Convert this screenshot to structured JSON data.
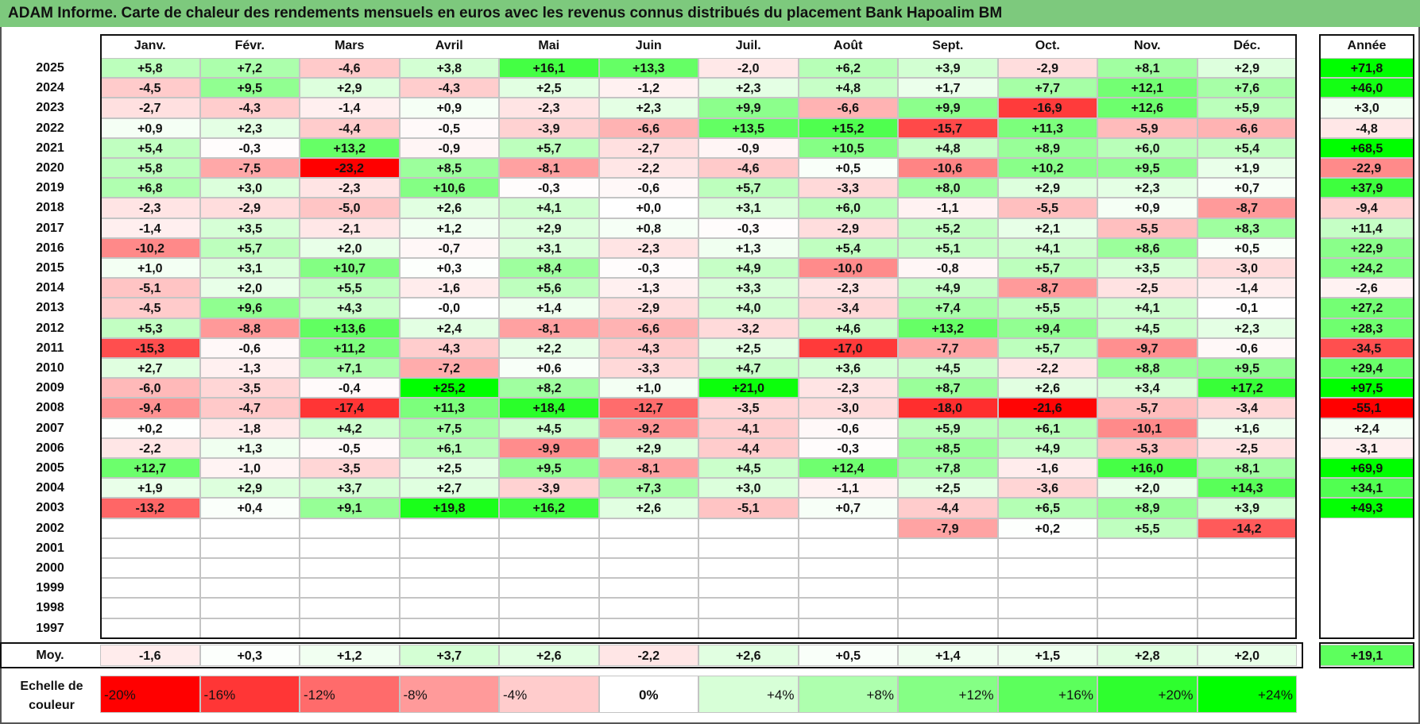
{
  "title": "ADAM Informe. Carte de chaleur des rendements mensuels en euros avec les revenus connus distribués du placement Bank Hapoalim BM",
  "chart_data": {
    "type": "heatmap",
    "title": "ADAM Informe. Carte de chaleur des rendements mensuels en euros avec les revenus connus distribués du placement Bank Hapoalim BM",
    "columns": [
      "Janv.",
      "Févr.",
      "Mars",
      "Avril",
      "Mai",
      "Juin",
      "Juil.",
      "Août",
      "Sept.",
      "Oct.",
      "Nov.",
      "Déc."
    ],
    "year_header": "Année",
    "average_label": "Moy.",
    "rows": [
      {
        "year": "2025",
        "values": [
          "+5,8",
          "+7,2",
          "-4,6",
          "+3,8",
          "+16,1",
          "+13,3",
          "-2,0",
          "+6,2",
          "+3,9",
          "-2,9",
          "+8,1",
          "+2,9"
        ],
        "total": "+71,8"
      },
      {
        "year": "2024",
        "values": [
          "-4,5",
          "+9,5",
          "+2,9",
          "-4,3",
          "+2,5",
          "-1,2",
          "+2,3",
          "+4,8",
          "+1,7",
          "+7,7",
          "+12,1",
          "+7,6"
        ],
        "total": "+46,0"
      },
      {
        "year": "2023",
        "values": [
          "-2,7",
          "-4,3",
          "-1,4",
          "+0,9",
          "-2,3",
          "+2,3",
          "+9,9",
          "-6,6",
          "+9,9",
          "-16,9",
          "+12,6",
          "+5,9"
        ],
        "total": "+3,0"
      },
      {
        "year": "2022",
        "values": [
          "+0,9",
          "+2,3",
          "-4,4",
          "-0,5",
          "-3,9",
          "-6,6",
          "+13,5",
          "+15,2",
          "-15,7",
          "+11,3",
          "-5,9",
          "-6,6"
        ],
        "total": "-4,8"
      },
      {
        "year": "2021",
        "values": [
          "+5,4",
          "-0,3",
          "+13,2",
          "-0,9",
          "+5,7",
          "-2,7",
          "-0,9",
          "+10,5",
          "+4,8",
          "+8,9",
          "+6,0",
          "+5,4"
        ],
        "total": "+68,5"
      },
      {
        "year": "2020",
        "values": [
          "+5,8",
          "-7,5",
          "-23,2",
          "+8,5",
          "-8,1",
          "-2,2",
          "-4,6",
          "+0,5",
          "-10,6",
          "+10,2",
          "+9,5",
          "+1,9"
        ],
        "total": "-22,9"
      },
      {
        "year": "2019",
        "values": [
          "+6,8",
          "+3,0",
          "-2,3",
          "+10,6",
          "-0,3",
          "-0,6",
          "+5,7",
          "-3,3",
          "+8,0",
          "+2,9",
          "+2,3",
          "+0,7"
        ],
        "total": "+37,9"
      },
      {
        "year": "2018",
        "values": [
          "-2,3",
          "-2,9",
          "-5,0",
          "+2,6",
          "+4,1",
          "+0,0",
          "+3,1",
          "+6,0",
          "-1,1",
          "-5,5",
          "+0,9",
          "-8,7"
        ],
        "total": "-9,4"
      },
      {
        "year": "2017",
        "values": [
          "-1,4",
          "+3,5",
          "-2,1",
          "+1,2",
          "+2,9",
          "+0,8",
          "-0,3",
          "-2,9",
          "+5,2",
          "+2,1",
          "-5,5",
          "+8,3"
        ],
        "total": "+11,4"
      },
      {
        "year": "2016",
        "values": [
          "-10,2",
          "+5,7",
          "+2,0",
          "-0,7",
          "+3,1",
          "-2,3",
          "+1,3",
          "+5,4",
          "+5,1",
          "+4,1",
          "+8,6",
          "+0,5"
        ],
        "total": "+22,9"
      },
      {
        "year": "2015",
        "values": [
          "+1,0",
          "+3,1",
          "+10,7",
          "+0,3",
          "+8,4",
          "-0,3",
          "+4,9",
          "-10,0",
          "-0,8",
          "+5,7",
          "+3,5",
          "-3,0"
        ],
        "total": "+24,2"
      },
      {
        "year": "2014",
        "values": [
          "-5,1",
          "+2,0",
          "+5,5",
          "-1,6",
          "+5,6",
          "-1,3",
          "+3,3",
          "-2,3",
          "+4,9",
          "-8,7",
          "-2,5",
          "-1,4"
        ],
        "total": "-2,6"
      },
      {
        "year": "2013",
        "values": [
          "-4,5",
          "+9,6",
          "+4,3",
          "-0,0",
          "+1,4",
          "-2,9",
          "+4,0",
          "-3,4",
          "+7,4",
          "+5,5",
          "+4,1",
          "-0,1"
        ],
        "total": "+27,2"
      },
      {
        "year": "2012",
        "values": [
          "+5,3",
          "-8,8",
          "+13,6",
          "+2,4",
          "-8,1",
          "-6,6",
          "-3,2",
          "+4,6",
          "+13,2",
          "+9,4",
          "+4,5",
          "+2,3"
        ],
        "total": "+28,3"
      },
      {
        "year": "2011",
        "values": [
          "-15,3",
          "-0,6",
          "+11,2",
          "-4,3",
          "+2,2",
          "-4,3",
          "+2,5",
          "-17,0",
          "-7,7",
          "+5,7",
          "-9,7",
          "-0,6"
        ],
        "total": "-34,5"
      },
      {
        "year": "2010",
        "values": [
          "+2,7",
          "-1,3",
          "+7,1",
          "-7,2",
          "+0,6",
          "-3,3",
          "+4,7",
          "+3,6",
          "+4,5",
          "-2,2",
          "+8,8",
          "+9,5"
        ],
        "total": "+29,4"
      },
      {
        "year": "2009",
        "values": [
          "-6,0",
          "-3,5",
          "-0,4",
          "+25,2",
          "+8,2",
          "+1,0",
          "+21,0",
          "-2,3",
          "+8,7",
          "+2,6",
          "+3,4",
          "+17,2"
        ],
        "total": "+97,5"
      },
      {
        "year": "2008",
        "values": [
          "-9,4",
          "-4,7",
          "-17,4",
          "+11,3",
          "+18,4",
          "-12,7",
          "-3,5",
          "-3,0",
          "-18,0",
          "-21,6",
          "-5,7",
          "-3,4"
        ],
        "total": "-55,1"
      },
      {
        "year": "2007",
        "values": [
          "+0,2",
          "-1,8",
          "+4,2",
          "+7,5",
          "+4,5",
          "-9,2",
          "-4,1",
          "-0,6",
          "+5,9",
          "+6,1",
          "-10,1",
          "+1,6"
        ],
        "total": "+2,4"
      },
      {
        "year": "2006",
        "values": [
          "-2,2",
          "+1,3",
          "-0,5",
          "+6,1",
          "-9,9",
          "+2,9",
          "-4,4",
          "-0,3",
          "+8,5",
          "+4,9",
          "-5,3",
          "-2,5"
        ],
        "total": "-3,1"
      },
      {
        "year": "2005",
        "values": [
          "+12,7",
          "-1,0",
          "-3,5",
          "+2,5",
          "+9,5",
          "-8,1",
          "+4,5",
          "+12,4",
          "+7,8",
          "-1,6",
          "+16,0",
          "+8,1"
        ],
        "total": "+69,9"
      },
      {
        "year": "2004",
        "values": [
          "+1,9",
          "+2,9",
          "+3,7",
          "+2,7",
          "-3,9",
          "+7,3",
          "+3,0",
          "-1,1",
          "+2,5",
          "-3,6",
          "+2,0",
          "+14,3"
        ],
        "total": "+34,1"
      },
      {
        "year": "2003",
        "values": [
          "-13,2",
          "+0,4",
          "+9,1",
          "+19,8",
          "+16,2",
          "+2,6",
          "-5,1",
          "+0,7",
          "-4,4",
          "+6,5",
          "+8,9",
          "+3,9"
        ],
        "total": "+49,3"
      },
      {
        "year": "2002",
        "values": [
          "",
          "",
          "",
          "",
          "",
          "",
          "",
          "",
          "-7,9",
          "+0,2",
          "+5,5",
          "-14,2"
        ],
        "total": ""
      },
      {
        "year": "2001",
        "values": [
          "",
          "",
          "",
          "",
          "",
          "",
          "",
          "",
          "",
          "",
          "",
          ""
        ],
        "total": ""
      },
      {
        "year": "2000",
        "values": [
          "",
          "",
          "",
          "",
          "",
          "",
          "",
          "",
          "",
          "",
          "",
          ""
        ],
        "total": ""
      },
      {
        "year": "1999",
        "values": [
          "",
          "",
          "",
          "",
          "",
          "",
          "",
          "",
          "",
          "",
          "",
          ""
        ],
        "total": ""
      },
      {
        "year": "1998",
        "values": [
          "",
          "",
          "",
          "",
          "",
          "",
          "",
          "",
          "",
          "",
          "",
          ""
        ],
        "total": ""
      },
      {
        "year": "1997",
        "values": [
          "",
          "",
          "",
          "",
          "",
          "",
          "",
          "",
          "",
          "",
          "",
          ""
        ],
        "total": ""
      }
    ],
    "average": {
      "values": [
        "-1,6",
        "+0,3",
        "+1,2",
        "+3,7",
        "+2,6",
        "-2,2",
        "+2,6",
        "+0,5",
        "+1,4",
        "+1,5",
        "+2,8",
        "+2,0"
      ],
      "total": "+19,1"
    },
    "scale_label": "Echelle de couleur",
    "scale": [
      "-20%",
      "-16%",
      "-12%",
      "-8%",
      "-4%",
      "0%",
      "+4%",
      "+8%",
      "+12%",
      "+16%",
      "+20%",
      "+24%"
    ],
    "scale_colors": [
      "#ff0000",
      "#ff3636",
      "#ff6b6b",
      "#ff9a9a",
      "#ffcccc",
      "#ffffff",
      "#d7ffd7",
      "#aeffae",
      "#85ff85",
      "#5cff5c",
      "#2eff2e",
      "#00ff00"
    ],
    "colors": {
      "negative_max": "#ff0000",
      "neutral": "#ffffff",
      "positive_max": "#00ff00",
      "title_bar": "#7dc97d"
    }
  }
}
